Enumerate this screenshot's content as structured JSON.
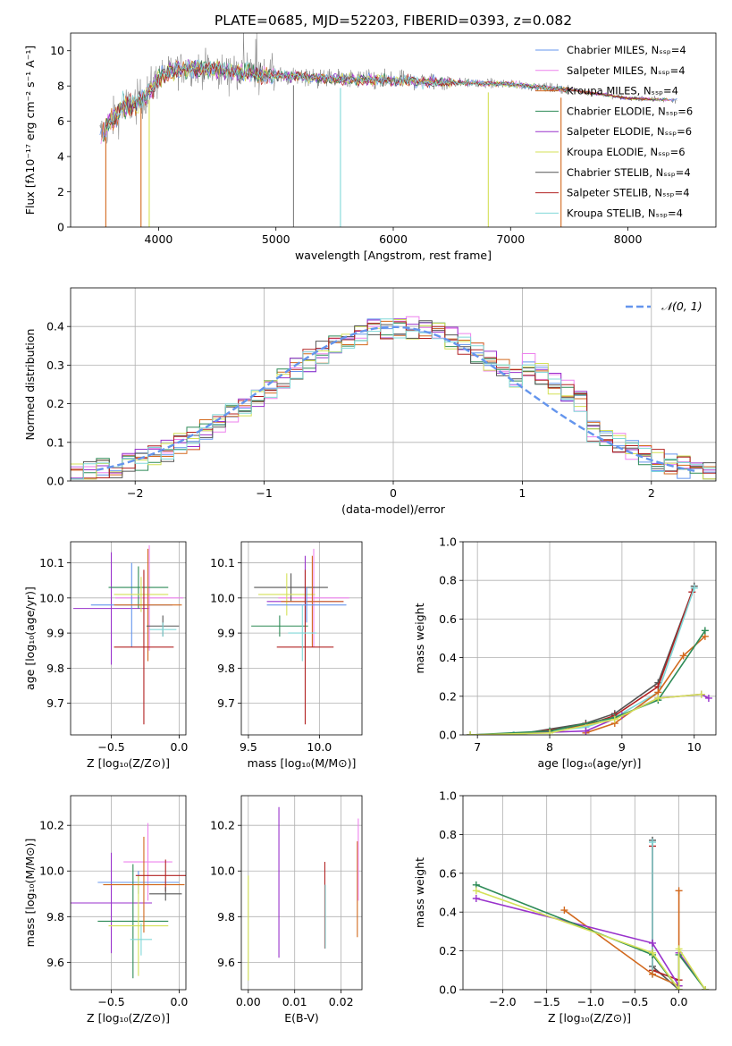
{
  "figure_title": "PLATE=0685, MJD=52203, FIBERID=0393, z=0.082",
  "chart_data": [
    {
      "id": "spectrum",
      "type": "line",
      "xlabel": "wavelength [Angstrom, rest frame]",
      "ylabel": "Flux [fλ10⁻¹⁷ erg cm⁻² s⁻¹ A⁻¹]",
      "xlim": [
        3250,
        8750
      ],
      "ylim": [
        0,
        11
      ],
      "xticks": [
        4000,
        5000,
        6000,
        7000,
        8000
      ],
      "yticks": [
        0,
        2,
        4,
        6,
        8,
        10
      ],
      "legend": "top-right",
      "series": [
        {
          "name": "Chabrier MILES, Nₛₛₚ=4",
          "color": "#6495ed"
        },
        {
          "name": "Salpeter MILES, Nₛₛₚ=4",
          "color": "#ee82ee"
        },
        {
          "name": "Kroupa MILES, Nₛₛₚ=4",
          "color": "#d2691e"
        },
        {
          "name": "Chabrier ELODIE, Nₛₛₚ=6",
          "color": "#2e8b57"
        },
        {
          "name": "Salpeter ELODIE, Nₛₛₚ=6",
          "color": "#9932cc"
        },
        {
          "name": "Kroupa ELODIE, Nₛₛₚ=6",
          "color": "#d4e157"
        },
        {
          "name": "Chabrier STELIB, Nₛₛₚ=4",
          "color": "#555555"
        },
        {
          "name": "Salpeter STELIB, Nₛₛₚ=4",
          "color": "#b22222"
        },
        {
          "name": "Kroupa STELIB, Nₛₛₚ=4",
          "color": "#80d8d8"
        }
      ],
      "data_envelope": {
        "x": [
          3500,
          3600,
          3700,
          3800,
          3900,
          4000,
          4200,
          4400,
          4600,
          5000,
          5500,
          6000,
          6500,
          7000,
          7300,
          7500,
          8000,
          8400
        ],
        "y": [
          5.2,
          6.0,
          6.8,
          7.0,
          7.5,
          8.5,
          9.0,
          9.0,
          8.8,
          8.6,
          8.4,
          8.3,
          8.2,
          8.1,
          7.9,
          7.8,
          7.3,
          7.2
        ]
      },
      "drops_at": [
        3550,
        3850,
        3920,
        5150,
        5550,
        6810,
        7430
      ]
    },
    {
      "id": "residuals",
      "type": "histogram",
      "xlabel": "(data-model)/error",
      "ylabel": "Normed distribution",
      "xlim": [
        -2.5,
        2.5
      ],
      "ylim": [
        0,
        0.5
      ],
      "xticks": [
        -2,
        -1,
        0,
        1,
        2
      ],
      "yticks": [
        0.0,
        0.1,
        0.2,
        0.3,
        0.4
      ],
      "legend": "top-right",
      "reference_label": "𝒩(0, 1)",
      "reference_color": "#6495ed",
      "bin_width": 0.1
    },
    {
      "id": "age-vs-Z",
      "type": "errorbar",
      "xlabel": "Z [log₁₀(Z/Z⊙)]",
      "ylabel": "age  [log₁₀(age/yr)]",
      "xlim": [
        -0.8,
        0.05
      ],
      "ylim": [
        9.61,
        10.16
      ],
      "xticks": [
        -0.5,
        0.0
      ],
      "yticks": [
        9.7,
        9.8,
        9.9,
        10.0,
        10.1
      ],
      "points": [
        {
          "x": -0.5,
          "y": 9.97,
          "xerr": 0.28,
          "yerr": 0.16,
          "color": "#9932cc"
        },
        {
          "x": -0.22,
          "y": 10.0,
          "xerr": 0.25,
          "yerr": 0.15,
          "color": "#ee82ee"
        },
        {
          "x": -0.35,
          "y": 9.98,
          "xerr": 0.3,
          "yerr": 0.12,
          "color": "#6495ed"
        },
        {
          "x": -0.3,
          "y": 10.03,
          "xerr": 0.22,
          "yerr": 0.06,
          "color": "#2e8b57"
        },
        {
          "x": -0.28,
          "y": 10.01,
          "xerr": 0.2,
          "yerr": 0.05,
          "color": "#d4e157"
        },
        {
          "x": -0.23,
          "y": 9.98,
          "xerr": 0.25,
          "yerr": 0.16,
          "color": "#d2691e"
        },
        {
          "x": -0.26,
          "y": 9.86,
          "xerr": 0.22,
          "yerr": 0.22,
          "color": "#b22222"
        },
        {
          "x": -0.12,
          "y": 9.92,
          "xerr": 0.12,
          "yerr": 0.03,
          "color": "#555555"
        },
        {
          "x": -0.12,
          "y": 9.91,
          "xerr": 0.1,
          "yerr": 0.02,
          "color": "#80d8d8"
        }
      ]
    },
    {
      "id": "age-vs-mass",
      "type": "errorbar",
      "xlabel": "mass [log₁₀(M/M⊙)]",
      "ylabel": "",
      "xlim": [
        9.45,
        10.3
      ],
      "ylim": [
        9.61,
        10.16
      ],
      "xticks": [
        9.5,
        10.0
      ],
      "yticks": [
        9.7,
        9.8,
        9.9,
        10.0,
        10.1
      ],
      "points": [
        {
          "x": 9.9,
          "y": 9.99,
          "xerr": 0.27,
          "yerr": 0.13,
          "color": "#9932cc"
        },
        {
          "x": 9.96,
          "y": 10.0,
          "xerr": 0.25,
          "yerr": 0.14,
          "color": "#ee82ee"
        },
        {
          "x": 9.8,
          "y": 10.03,
          "xerr": 0.26,
          "yerr": 0.04,
          "color": "#555555"
        },
        {
          "x": 9.77,
          "y": 10.01,
          "xerr": 0.2,
          "yerr": 0.06,
          "color": "#d4e157"
        },
        {
          "x": 9.95,
          "y": 9.99,
          "xerr": 0.22,
          "yerr": 0.13,
          "color": "#d2691e"
        },
        {
          "x": 9.72,
          "y": 9.92,
          "xerr": 0.2,
          "yerr": 0.03,
          "color": "#2e8b57"
        },
        {
          "x": 9.9,
          "y": 9.86,
          "xerr": 0.2,
          "yerr": 0.22,
          "color": "#b22222"
        },
        {
          "x": 9.91,
          "y": 9.98,
          "xerr": 0.28,
          "yerr": 0.05,
          "color": "#6495ed"
        },
        {
          "x": 9.88,
          "y": 9.9,
          "xerr": 0.1,
          "yerr": 0.08,
          "color": "#80d8d8"
        }
      ]
    },
    {
      "id": "weight-vs-age",
      "type": "line",
      "xlabel": "age  [log₁₀(age/yr)]",
      "ylabel": "mass weight",
      "xlim": [
        6.8,
        10.3
      ],
      "ylim": [
        0,
        1.0
      ],
      "xticks": [
        7,
        8,
        9,
        10
      ],
      "yticks": [
        0.0,
        0.2,
        0.4,
        0.6,
        0.8,
        1.0
      ],
      "series": [
        {
          "color": "#555555",
          "x": [
            7.5,
            8.5,
            8.9,
            9.5,
            10.0
          ],
          "y": [
            0.0,
            0.06,
            0.11,
            0.27,
            0.77
          ]
        },
        {
          "color": "#b22222",
          "x": [
            7.5,
            8.5,
            8.9,
            9.5,
            9.97
          ],
          "y": [
            0.0,
            0.05,
            0.1,
            0.25,
            0.74
          ]
        },
        {
          "color": "#80d8d8",
          "x": [
            7.5,
            8.5,
            8.9,
            9.5,
            10.0
          ],
          "y": [
            0.0,
            0.04,
            0.09,
            0.22,
            0.76
          ]
        },
        {
          "color": "#d2691e",
          "x": [
            8.5,
            8.9,
            9.5,
            9.85,
            10.15
          ],
          "y": [
            0.01,
            0.06,
            0.22,
            0.41,
            0.51
          ]
        },
        {
          "color": "#9932cc",
          "x": [
            6.9,
            8.5,
            9.0,
            9.5,
            10.1,
            10.2
          ],
          "y": [
            0.0,
            0.02,
            0.1,
            0.19,
            0.21,
            0.19
          ]
        },
        {
          "color": "#2e8b57",
          "x": [
            6.9,
            8.0,
            8.9,
            9.5,
            10.15
          ],
          "y": [
            0.0,
            0.02,
            0.09,
            0.18,
            0.54
          ]
        },
        {
          "color": "#d4e157",
          "x": [
            6.9,
            8.0,
            8.9,
            9.5,
            10.1
          ],
          "y": [
            0.0,
            0.01,
            0.08,
            0.19,
            0.21
          ]
        }
      ]
    },
    {
      "id": "mass-vs-Z",
      "type": "errorbar",
      "xlabel": "Z [log₁₀(Z/Z⊙)]",
      "ylabel": "mass [log₁₀(M/M⊙)]",
      "xlim": [
        -0.8,
        0.05
      ],
      "ylim": [
        9.48,
        10.33
      ],
      "xticks": [
        -0.5,
        0.0
      ],
      "yticks": [
        9.6,
        9.8,
        10.0,
        10.2
      ],
      "points": [
        {
          "x": -0.5,
          "y": 9.86,
          "xerr": 0.3,
          "yerr": 0.22,
          "color": "#9932cc"
        },
        {
          "x": -0.23,
          "y": 10.04,
          "xerr": 0.18,
          "yerr": 0.17,
          "color": "#ee82ee"
        },
        {
          "x": -0.3,
          "y": 9.95,
          "xerr": 0.3,
          "yerr": 0.05,
          "color": "#6495ed"
        },
        {
          "x": -0.34,
          "y": 9.78,
          "xerr": 0.26,
          "yerr": 0.25,
          "color": "#2e8b57"
        },
        {
          "x": -0.3,
          "y": 9.76,
          "xerr": 0.22,
          "yerr": 0.22,
          "color": "#d4e157"
        },
        {
          "x": -0.26,
          "y": 9.94,
          "xerr": 0.3,
          "yerr": 0.21,
          "color": "#d2691e"
        },
        {
          "x": -0.1,
          "y": 9.98,
          "xerr": 0.22,
          "yerr": 0.07,
          "color": "#b22222"
        },
        {
          "x": -0.1,
          "y": 9.9,
          "xerr": 0.12,
          "yerr": 0.03,
          "color": "#555555"
        },
        {
          "x": -0.28,
          "y": 9.7,
          "xerr": 0.08,
          "yerr": 0.07,
          "color": "#80d8d8"
        }
      ]
    },
    {
      "id": "mass-vs-ebv",
      "type": "errorbar",
      "xlabel": "E(B-V)",
      "ylabel": "",
      "xlim": [
        -0.0015,
        0.0245
      ],
      "ylim": [
        9.48,
        10.33
      ],
      "xticks": [
        0.0,
        0.01,
        0.02
      ],
      "yticks": [
        9.6,
        9.8,
        10.0,
        10.2
      ],
      "points": [
        {
          "x": 0.0,
          "y": 9.75,
          "xerr": 0,
          "yerr": 0.23,
          "color": "#d4e157"
        },
        {
          "x": 0.0066,
          "y": 9.95,
          "xerr": 0,
          "yerr": 0.33,
          "color": "#9932cc"
        },
        {
          "x": 0.0165,
          "y": 9.85,
          "xerr": 0,
          "yerr": 0.19,
          "color": "#b22222"
        },
        {
          "x": 0.0166,
          "y": 9.8,
          "xerr": 0,
          "yerr": 0.14,
          "color": "#80d8d8"
        },
        {
          "x": 0.0235,
          "y": 9.92,
          "xerr": 0,
          "yerr": 0.21,
          "color": "#d2691e"
        },
        {
          "x": 0.0237,
          "y": 10.05,
          "xerr": 0,
          "yerr": 0.18,
          "color": "#ee82ee"
        }
      ]
    },
    {
      "id": "weight-vs-Z",
      "type": "line",
      "xlabel": "Z [log₁₀(Z/Z⊙)]",
      "ylabel": "mass weight",
      "xlim": [
        -2.45,
        0.42
      ],
      "ylim": [
        0,
        1.0
      ],
      "xticks": [
        -2.0,
        -1.5,
        -1.0,
        -0.5,
        0.0
      ],
      "yticks": [
        0.0,
        0.2,
        0.4,
        0.6,
        0.8,
        1.0
      ],
      "series": [
        {
          "color": "#555555",
          "x": [
            -0.3,
            -0.3,
            0.0
          ],
          "y": [
            0.77,
            0.12,
            0.0
          ]
        },
        {
          "color": "#b22222",
          "x": [
            -0.3,
            -0.3,
            0.0
          ],
          "y": [
            0.74,
            0.1,
            0.05
          ]
        },
        {
          "color": "#80d8d8",
          "x": [
            -0.3,
            -0.3,
            0.0
          ],
          "y": [
            0.76,
            0.08,
            0.02
          ]
        },
        {
          "color": "#d2691e",
          "x": [
            -1.3,
            -0.3,
            0.0,
            0.0
          ],
          "y": [
            0.41,
            0.08,
            0.02,
            0.51
          ]
        },
        {
          "color": "#9932cc",
          "x": [
            -2.3,
            -0.3,
            0.0,
            0.0,
            0.3
          ],
          "y": [
            0.47,
            0.24,
            0.02,
            0.19,
            0.0
          ]
        },
        {
          "color": "#2e8b57",
          "x": [
            -2.3,
            -0.3,
            0.0,
            0.0,
            0.3
          ],
          "y": [
            0.54,
            0.18,
            0.0,
            0.18,
            0.0
          ]
        },
        {
          "color": "#d4e157",
          "x": [
            -2.3,
            -0.3,
            0.0,
            0.0,
            0.3
          ],
          "y": [
            0.51,
            0.19,
            0.0,
            0.21,
            0.0
          ]
        }
      ]
    }
  ]
}
